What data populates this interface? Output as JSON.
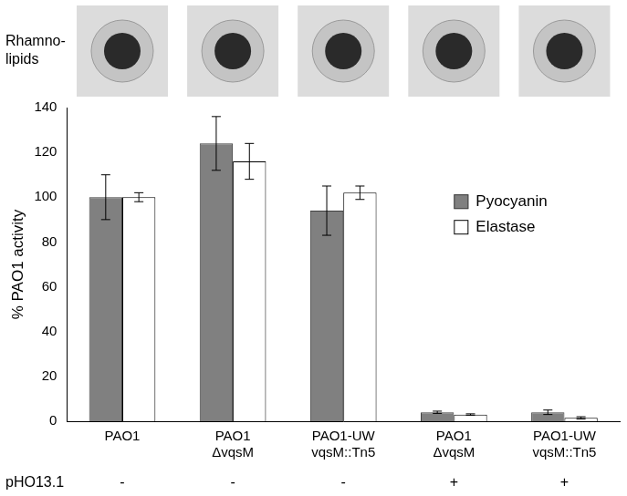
{
  "chart_data": {
    "type": "bar",
    "categories": [
      [
        "PAO1"
      ],
      [
        "PAO1",
        "ΔvqsM"
      ],
      [
        "PAO1-UW",
        "vqsM::Tn5"
      ],
      [
        "PAO1",
        "ΔvqsM"
      ],
      [
        "PAO1-UW",
        "vqsM::Tn5"
      ]
    ],
    "series": [
      {
        "name": "Pyocyanin",
        "color": "#808080",
        "values": [
          100,
          124,
          94,
          4,
          4
        ],
        "errors": [
          10,
          12,
          11,
          0.5,
          1
        ]
      },
      {
        "name": "Elastase",
        "color": "#ffffff",
        "values": [
          100,
          116,
          102,
          3,
          1.5
        ],
        "errors": [
          2,
          8,
          3,
          0.3,
          0.5
        ]
      }
    ],
    "y_label": "% PAO1 activity",
    "ylim": [
      0,
      140
    ],
    "yticks": [
      0,
      20,
      40,
      60,
      80,
      100,
      120,
      140
    ],
    "grid": false,
    "legend": "right",
    "image_row_label": [
      "Rhamno-",
      "lipids"
    ],
    "row_label": "pHO13.1",
    "row_values": [
      "-",
      "-",
      "-",
      "+",
      "+"
    ]
  }
}
